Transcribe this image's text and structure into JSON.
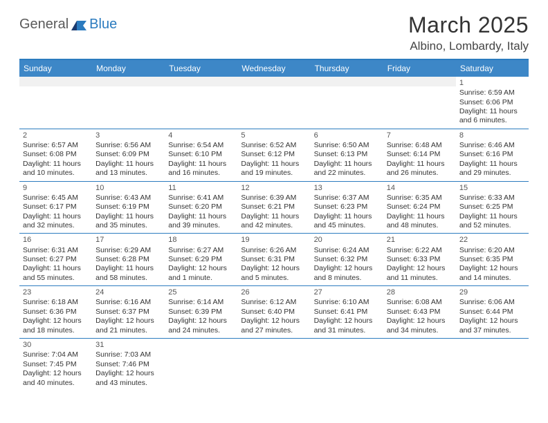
{
  "logo": {
    "part1": "General",
    "part2": "Blue"
  },
  "title": "March 2025",
  "location": "Albino, Lombardy, Italy",
  "colors": {
    "header_bg": "#3d87c7",
    "border": "#2b7bbf",
    "empty_bg": "#f1f1f1",
    "text": "#333333",
    "logo_gray": "#5a5a5a",
    "logo_blue": "#2b7bbf"
  },
  "day_names": [
    "Sunday",
    "Monday",
    "Tuesday",
    "Wednesday",
    "Thursday",
    "Friday",
    "Saturday"
  ],
  "weeks": [
    [
      {
        "empty": true
      },
      {
        "empty": true
      },
      {
        "empty": true
      },
      {
        "empty": true
      },
      {
        "empty": true
      },
      {
        "empty": true
      },
      {
        "num": "1",
        "sunrise": "Sunrise: 6:59 AM",
        "sunset": "Sunset: 6:06 PM",
        "daylight": "Daylight: 11 hours and 6 minutes."
      }
    ],
    [
      {
        "num": "2",
        "sunrise": "Sunrise: 6:57 AM",
        "sunset": "Sunset: 6:08 PM",
        "daylight": "Daylight: 11 hours and 10 minutes."
      },
      {
        "num": "3",
        "sunrise": "Sunrise: 6:56 AM",
        "sunset": "Sunset: 6:09 PM",
        "daylight": "Daylight: 11 hours and 13 minutes."
      },
      {
        "num": "4",
        "sunrise": "Sunrise: 6:54 AM",
        "sunset": "Sunset: 6:10 PM",
        "daylight": "Daylight: 11 hours and 16 minutes."
      },
      {
        "num": "5",
        "sunrise": "Sunrise: 6:52 AM",
        "sunset": "Sunset: 6:12 PM",
        "daylight": "Daylight: 11 hours and 19 minutes."
      },
      {
        "num": "6",
        "sunrise": "Sunrise: 6:50 AM",
        "sunset": "Sunset: 6:13 PM",
        "daylight": "Daylight: 11 hours and 22 minutes."
      },
      {
        "num": "7",
        "sunrise": "Sunrise: 6:48 AM",
        "sunset": "Sunset: 6:14 PM",
        "daylight": "Daylight: 11 hours and 26 minutes."
      },
      {
        "num": "8",
        "sunrise": "Sunrise: 6:46 AM",
        "sunset": "Sunset: 6:16 PM",
        "daylight": "Daylight: 11 hours and 29 minutes."
      }
    ],
    [
      {
        "num": "9",
        "sunrise": "Sunrise: 6:45 AM",
        "sunset": "Sunset: 6:17 PM",
        "daylight": "Daylight: 11 hours and 32 minutes."
      },
      {
        "num": "10",
        "sunrise": "Sunrise: 6:43 AM",
        "sunset": "Sunset: 6:19 PM",
        "daylight": "Daylight: 11 hours and 35 minutes."
      },
      {
        "num": "11",
        "sunrise": "Sunrise: 6:41 AM",
        "sunset": "Sunset: 6:20 PM",
        "daylight": "Daylight: 11 hours and 39 minutes."
      },
      {
        "num": "12",
        "sunrise": "Sunrise: 6:39 AM",
        "sunset": "Sunset: 6:21 PM",
        "daylight": "Daylight: 11 hours and 42 minutes."
      },
      {
        "num": "13",
        "sunrise": "Sunrise: 6:37 AM",
        "sunset": "Sunset: 6:23 PM",
        "daylight": "Daylight: 11 hours and 45 minutes."
      },
      {
        "num": "14",
        "sunrise": "Sunrise: 6:35 AM",
        "sunset": "Sunset: 6:24 PM",
        "daylight": "Daylight: 11 hours and 48 minutes."
      },
      {
        "num": "15",
        "sunrise": "Sunrise: 6:33 AM",
        "sunset": "Sunset: 6:25 PM",
        "daylight": "Daylight: 11 hours and 52 minutes."
      }
    ],
    [
      {
        "num": "16",
        "sunrise": "Sunrise: 6:31 AM",
        "sunset": "Sunset: 6:27 PM",
        "daylight": "Daylight: 11 hours and 55 minutes."
      },
      {
        "num": "17",
        "sunrise": "Sunrise: 6:29 AM",
        "sunset": "Sunset: 6:28 PM",
        "daylight": "Daylight: 11 hours and 58 minutes."
      },
      {
        "num": "18",
        "sunrise": "Sunrise: 6:27 AM",
        "sunset": "Sunset: 6:29 PM",
        "daylight": "Daylight: 12 hours and 1 minute."
      },
      {
        "num": "19",
        "sunrise": "Sunrise: 6:26 AM",
        "sunset": "Sunset: 6:31 PM",
        "daylight": "Daylight: 12 hours and 5 minutes."
      },
      {
        "num": "20",
        "sunrise": "Sunrise: 6:24 AM",
        "sunset": "Sunset: 6:32 PM",
        "daylight": "Daylight: 12 hours and 8 minutes."
      },
      {
        "num": "21",
        "sunrise": "Sunrise: 6:22 AM",
        "sunset": "Sunset: 6:33 PM",
        "daylight": "Daylight: 12 hours and 11 minutes."
      },
      {
        "num": "22",
        "sunrise": "Sunrise: 6:20 AM",
        "sunset": "Sunset: 6:35 PM",
        "daylight": "Daylight: 12 hours and 14 minutes."
      }
    ],
    [
      {
        "num": "23",
        "sunrise": "Sunrise: 6:18 AM",
        "sunset": "Sunset: 6:36 PM",
        "daylight": "Daylight: 12 hours and 18 minutes."
      },
      {
        "num": "24",
        "sunrise": "Sunrise: 6:16 AM",
        "sunset": "Sunset: 6:37 PM",
        "daylight": "Daylight: 12 hours and 21 minutes."
      },
      {
        "num": "25",
        "sunrise": "Sunrise: 6:14 AM",
        "sunset": "Sunset: 6:39 PM",
        "daylight": "Daylight: 12 hours and 24 minutes."
      },
      {
        "num": "26",
        "sunrise": "Sunrise: 6:12 AM",
        "sunset": "Sunset: 6:40 PM",
        "daylight": "Daylight: 12 hours and 27 minutes."
      },
      {
        "num": "27",
        "sunrise": "Sunrise: 6:10 AM",
        "sunset": "Sunset: 6:41 PM",
        "daylight": "Daylight: 12 hours and 31 minutes."
      },
      {
        "num": "28",
        "sunrise": "Sunrise: 6:08 AM",
        "sunset": "Sunset: 6:43 PM",
        "daylight": "Daylight: 12 hours and 34 minutes."
      },
      {
        "num": "29",
        "sunrise": "Sunrise: 6:06 AM",
        "sunset": "Sunset: 6:44 PM",
        "daylight": "Daylight: 12 hours and 37 minutes."
      }
    ],
    [
      {
        "num": "30",
        "sunrise": "Sunrise: 7:04 AM",
        "sunset": "Sunset: 7:45 PM",
        "daylight": "Daylight: 12 hours and 40 minutes."
      },
      {
        "num": "31",
        "sunrise": "Sunrise: 7:03 AM",
        "sunset": "Sunset: 7:46 PM",
        "daylight": "Daylight: 12 hours and 43 minutes."
      },
      {
        "empty": true
      },
      {
        "empty": true
      },
      {
        "empty": true
      },
      {
        "empty": true
      },
      {
        "empty": true
      }
    ]
  ]
}
